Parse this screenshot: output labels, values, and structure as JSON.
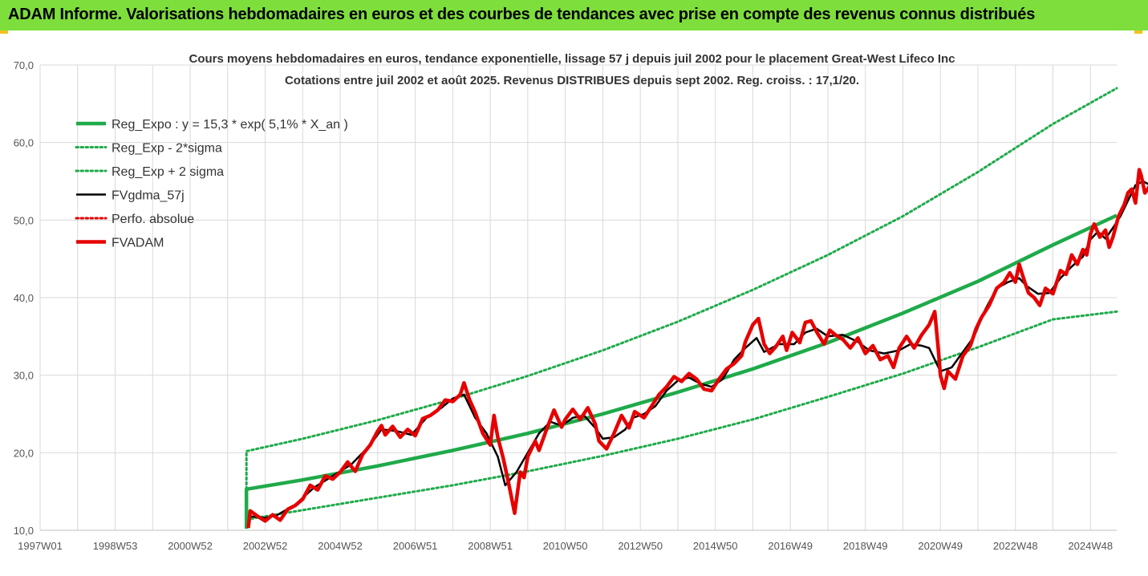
{
  "header": {
    "title": "ADAM Informe. Valorisations hebdomadaires en euros et des courbes de tendances avec prise en compte des revenus connus distribués"
  },
  "colors": {
    "header_bg": "#7dde3c",
    "trend": "#1faa4a",
    "black": "#000000",
    "red": "#e60000",
    "grid": "#d9d9d9"
  },
  "chart_data": {
    "type": "line",
    "title": "Cours moyens hebdomadaires en euros, tendance exponentielle, lissage 57 j depuis juil 2002 pour le placement Great-West Lifeco Inc",
    "subtitle": "Cotations entre juil 2002 et août 2025. Revenus DISTRIBUES depuis sept 2002. Reg. croiss. : 17,1/20.",
    "xlim": [
      1997.0,
      2025.7
    ],
    "ylim": [
      10,
      70
    ],
    "grid": "vertical and horizontal",
    "legend_position": "top-left",
    "y_ticks": [
      "10,0",
      "20,0",
      "30,0",
      "40,0",
      "50,0",
      "60,0",
      "70,0"
    ],
    "x_ticks": [
      {
        "label": "1997W01",
        "x": 1997.0
      },
      {
        "label": "1998W53",
        "x": 1999.0
      },
      {
        "label": "2000W52",
        "x": 2001.0
      },
      {
        "label": "2002W52",
        "x": 2003.0
      },
      {
        "label": "2004W52",
        "x": 2005.0
      },
      {
        "label": "2006W51",
        "x": 2007.0
      },
      {
        "label": "2008W51",
        "x": 2009.0
      },
      {
        "label": "2010W50",
        "x": 2011.0
      },
      {
        "label": "2012W50",
        "x": 2013.0
      },
      {
        "label": "2014W50",
        "x": 2015.0
      },
      {
        "label": "2016W49",
        "x": 2017.0
      },
      {
        "label": "2018W49",
        "x": 2019.0
      },
      {
        "label": "2020W49",
        "x": 2021.0
      },
      {
        "label": "2022W48",
        "x": 2023.0
      },
      {
        "label": "2024W48",
        "x": 2025.0
      }
    ],
    "series": [
      {
        "name": "Reg_Expo : y = 15,3 * exp( 5,1% *  X_an )",
        "style": "solid-thick",
        "color": "#1faa4a",
        "points": [
          [
            2002.5,
            10.2
          ],
          [
            2002.5,
            15.3
          ],
          [
            2004,
            16.5
          ],
          [
            2006,
            18.3
          ],
          [
            2008,
            20.3
          ],
          [
            2010,
            22.5
          ],
          [
            2012,
            25.0
          ],
          [
            2014,
            27.8
          ],
          [
            2016,
            30.8
          ],
          [
            2018,
            34.2
          ],
          [
            2020,
            38.0
          ],
          [
            2022,
            42.1
          ],
          [
            2024,
            46.8
          ],
          [
            2025.7,
            50.6
          ]
        ]
      },
      {
        "name": "Reg_Exp - 2*sigma",
        "style": "dotted",
        "color": "#1faa4a",
        "points": [
          [
            2002.5,
            11.4
          ],
          [
            2004,
            12.6
          ],
          [
            2006,
            14.2
          ],
          [
            2008,
            15.8
          ],
          [
            2010,
            17.6
          ],
          [
            2012,
            19.6
          ],
          [
            2014,
            21.8
          ],
          [
            2016,
            24.3
          ],
          [
            2018,
            27.2
          ],
          [
            2020,
            30.2
          ],
          [
            2022,
            33.6
          ],
          [
            2024,
            37.2
          ],
          [
            2025.7,
            38.2
          ]
        ]
      },
      {
        "name": "Reg_Exp + 2 sigma",
        "style": "dotted",
        "color": "#1faa4a",
        "points": [
          [
            2002.5,
            15.3
          ],
          [
            2002.5,
            20.2
          ],
          [
            2004,
            21.8
          ],
          [
            2006,
            24.2
          ],
          [
            2008,
            26.9
          ],
          [
            2010,
            29.9
          ],
          [
            2012,
            33.2
          ],
          [
            2014,
            36.9
          ],
          [
            2016,
            41.0
          ],
          [
            2018,
            45.5
          ],
          [
            2020,
            50.5
          ],
          [
            2022,
            56.2
          ],
          [
            2024,
            62.4
          ],
          [
            2025.7,
            67.0
          ]
        ]
      },
      {
        "name": "FVgdma_57j",
        "style": "solid",
        "color": "#000000",
        "points": [
          [
            2002.6,
            11.8
          ],
          [
            2003.0,
            11.6
          ],
          [
            2003.3,
            11.9
          ],
          [
            2003.8,
            13.3
          ],
          [
            2004.3,
            15.5
          ],
          [
            2004.8,
            17.0
          ],
          [
            2005.3,
            18.5
          ],
          [
            2005.8,
            21.0
          ],
          [
            2006.1,
            23.0
          ],
          [
            2006.5,
            22.8
          ],
          [
            2006.9,
            22.3
          ],
          [
            2007.3,
            24.5
          ],
          [
            2007.7,
            25.8
          ],
          [
            2008.0,
            27.0
          ],
          [
            2008.3,
            27.5
          ],
          [
            2008.6,
            24.5
          ],
          [
            2008.9,
            22.5
          ],
          [
            2009.2,
            19.5
          ],
          [
            2009.4,
            15.8
          ],
          [
            2009.7,
            17.5
          ],
          [
            2010.0,
            20.0
          ],
          [
            2010.3,
            22.5
          ],
          [
            2010.6,
            24.0
          ],
          [
            2010.9,
            23.5
          ],
          [
            2011.2,
            24.5
          ],
          [
            2011.5,
            24.8
          ],
          [
            2011.8,
            23.2
          ],
          [
            2012.0,
            21.8
          ],
          [
            2012.3,
            22.0
          ],
          [
            2012.6,
            23.0
          ],
          [
            2012.8,
            24.5
          ],
          [
            2013.1,
            25.0
          ],
          [
            2013.4,
            26.0
          ],
          [
            2013.7,
            28.0
          ],
          [
            2014.0,
            29.3
          ],
          [
            2014.3,
            29.7
          ],
          [
            2014.6,
            28.9
          ],
          [
            2014.9,
            28.5
          ],
          [
            2015.2,
            29.5
          ],
          [
            2015.5,
            32.0
          ],
          [
            2015.8,
            33.5
          ],
          [
            2016.1,
            34.8
          ],
          [
            2016.3,
            33.0
          ],
          [
            2016.5,
            33.5
          ],
          [
            2016.7,
            34.0
          ],
          [
            2016.9,
            34.0
          ],
          [
            2017.1,
            34.0
          ],
          [
            2017.4,
            35.5
          ],
          [
            2017.7,
            36.0
          ],
          [
            2018.0,
            35.0
          ],
          [
            2018.4,
            35.2
          ],
          [
            2018.8,
            34.3
          ],
          [
            2019.1,
            33.2
          ],
          [
            2019.5,
            32.8
          ],
          [
            2019.9,
            33.2
          ],
          [
            2020.2,
            34.0
          ],
          [
            2020.5,
            33.8
          ],
          [
            2020.7,
            33.5
          ],
          [
            2021.0,
            30.5
          ],
          [
            2021.3,
            31.0
          ],
          [
            2021.6,
            33.0
          ],
          [
            2021.9,
            35.0
          ],
          [
            2022.2,
            38.5
          ],
          [
            2022.5,
            41.2
          ],
          [
            2022.8,
            42.0
          ],
          [
            2023.1,
            42.5
          ],
          [
            2023.3,
            41.5
          ],
          [
            2023.6,
            40.5
          ],
          [
            2023.9,
            40.6
          ],
          [
            2024.2,
            42.5
          ],
          [
            2024.5,
            44.0
          ],
          [
            2024.8,
            45.3
          ],
          [
            2025.0,
            47.5
          ],
          [
            2025.2,
            48.5
          ],
          [
            2025.4,
            47.6
          ],
          [
            2025.6,
            49.0
          ],
          [
            2025.8,
            50.5
          ],
          [
            2026.0,
            52.5
          ],
          [
            2026.2,
            54.5
          ],
          [
            2026.4,
            55.0
          ],
          [
            2026.6,
            54.5
          ],
          [
            2026.8,
            54.3
          ]
        ]
      },
      {
        "name": "Perfo. absolue",
        "style": "dotted",
        "color": "#e60000",
        "points": []
      },
      {
        "name": "FVADAM",
        "style": "solid-thick",
        "color": "#e60000",
        "points": [
          [
            2002.55,
            10.3
          ],
          [
            2002.6,
            12.5
          ],
          [
            2002.8,
            11.8
          ],
          [
            2003.0,
            11.2
          ],
          [
            2003.2,
            12.0
          ],
          [
            2003.4,
            11.3
          ],
          [
            2003.6,
            12.7
          ],
          [
            2003.8,
            13.2
          ],
          [
            2004.0,
            14.0
          ],
          [
            2004.2,
            15.8
          ],
          [
            2004.4,
            15.2
          ],
          [
            2004.6,
            17.0
          ],
          [
            2004.8,
            16.6
          ],
          [
            2005.0,
            17.5
          ],
          [
            2005.2,
            18.8
          ],
          [
            2005.4,
            17.6
          ],
          [
            2005.6,
            19.8
          ],
          [
            2005.8,
            21.0
          ],
          [
            2006.0,
            22.8
          ],
          [
            2006.1,
            23.5
          ],
          [
            2006.2,
            22.3
          ],
          [
            2006.4,
            23.4
          ],
          [
            2006.6,
            22.0
          ],
          [
            2006.8,
            23.0
          ],
          [
            2007.0,
            22.2
          ],
          [
            2007.2,
            24.4
          ],
          [
            2007.4,
            24.8
          ],
          [
            2007.6,
            25.5
          ],
          [
            2007.8,
            26.8
          ],
          [
            2008.0,
            26.6
          ],
          [
            2008.2,
            27.5
          ],
          [
            2008.3,
            29.0
          ],
          [
            2008.45,
            26.8
          ],
          [
            2008.6,
            25.2
          ],
          [
            2008.8,
            22.5
          ],
          [
            2009.0,
            21.0
          ],
          [
            2009.1,
            24.8
          ],
          [
            2009.2,
            22.0
          ],
          [
            2009.35,
            19.2
          ],
          [
            2009.5,
            15.8
          ],
          [
            2009.65,
            12.2
          ],
          [
            2009.8,
            17.5
          ],
          [
            2009.9,
            16.8
          ],
          [
            2010.0,
            19.5
          ],
          [
            2010.2,
            21.5
          ],
          [
            2010.3,
            20.3
          ],
          [
            2010.5,
            23.0
          ],
          [
            2010.7,
            25.5
          ],
          [
            2010.9,
            23.3
          ],
          [
            2011.0,
            24.3
          ],
          [
            2011.2,
            25.6
          ],
          [
            2011.4,
            24.3
          ],
          [
            2011.6,
            25.8
          ],
          [
            2011.8,
            23.7
          ],
          [
            2011.9,
            21.5
          ],
          [
            2012.1,
            20.5
          ],
          [
            2012.3,
            22.5
          ],
          [
            2012.5,
            24.8
          ],
          [
            2012.7,
            23.2
          ],
          [
            2012.85,
            25.3
          ],
          [
            2013.1,
            24.5
          ],
          [
            2013.3,
            26.0
          ],
          [
            2013.5,
            27.5
          ],
          [
            2013.7,
            28.5
          ],
          [
            2013.9,
            29.8
          ],
          [
            2014.1,
            29.2
          ],
          [
            2014.3,
            30.2
          ],
          [
            2014.5,
            29.5
          ],
          [
            2014.7,
            28.2
          ],
          [
            2014.9,
            28.0
          ],
          [
            2015.1,
            29.5
          ],
          [
            2015.3,
            30.8
          ],
          [
            2015.5,
            31.5
          ],
          [
            2015.7,
            32.5
          ],
          [
            2015.8,
            34.3
          ],
          [
            2016.0,
            36.5
          ],
          [
            2016.15,
            37.3
          ],
          [
            2016.3,
            34.0
          ],
          [
            2016.45,
            32.8
          ],
          [
            2016.6,
            33.6
          ],
          [
            2016.8,
            35.0
          ],
          [
            2016.9,
            33.2
          ],
          [
            2017.05,
            35.5
          ],
          [
            2017.25,
            34.2
          ],
          [
            2017.4,
            36.8
          ],
          [
            2017.55,
            37.0
          ],
          [
            2017.7,
            35.6
          ],
          [
            2017.9,
            34.0
          ],
          [
            2018.05,
            35.8
          ],
          [
            2018.2,
            35.2
          ],
          [
            2018.4,
            34.6
          ],
          [
            2018.6,
            33.5
          ],
          [
            2018.8,
            34.8
          ],
          [
            2019.0,
            32.8
          ],
          [
            2019.2,
            33.8
          ],
          [
            2019.4,
            32.0
          ],
          [
            2019.6,
            32.5
          ],
          [
            2019.75,
            31.0
          ],
          [
            2019.9,
            33.5
          ],
          [
            2020.1,
            35.0
          ],
          [
            2020.3,
            33.5
          ],
          [
            2020.5,
            35.2
          ],
          [
            2020.7,
            36.5
          ],
          [
            2020.85,
            38.2
          ],
          [
            2020.95,
            33.0
          ],
          [
            2021.0,
            30.0
          ],
          [
            2021.1,
            28.3
          ],
          [
            2021.2,
            30.5
          ],
          [
            2021.4,
            29.5
          ],
          [
            2021.6,
            32.5
          ],
          [
            2021.8,
            33.8
          ],
          [
            2021.95,
            36.0
          ],
          [
            2022.1,
            37.5
          ],
          [
            2022.3,
            39.0
          ],
          [
            2022.5,
            41.2
          ],
          [
            2022.7,
            42.0
          ],
          [
            2022.85,
            43.2
          ],
          [
            2023.0,
            42.0
          ],
          [
            2023.1,
            44.3
          ],
          [
            2023.25,
            42.0
          ],
          [
            2023.35,
            40.6
          ],
          [
            2023.5,
            40.0
          ],
          [
            2023.65,
            39.0
          ],
          [
            2023.8,
            41.2
          ],
          [
            2024.0,
            40.5
          ],
          [
            2024.2,
            43.5
          ],
          [
            2024.35,
            43.0
          ],
          [
            2024.5,
            45.5
          ],
          [
            2024.65,
            44.3
          ],
          [
            2024.8,
            46.2
          ],
          [
            2024.9,
            45.5
          ],
          [
            2025.0,
            48.2
          ],
          [
            2025.1,
            49.5
          ],
          [
            2025.25,
            47.8
          ],
          [
            2025.4,
            48.7
          ],
          [
            2025.5,
            46.5
          ],
          [
            2025.6,
            47.8
          ],
          [
            2025.75,
            50.5
          ],
          [
            2025.9,
            52.0
          ],
          [
            2026.0,
            53.5
          ],
          [
            2026.1,
            54.0
          ],
          [
            2026.2,
            52.2
          ],
          [
            2026.3,
            56.5
          ],
          [
            2026.35,
            55.8
          ],
          [
            2026.45,
            53.5
          ],
          [
            2026.6,
            54.5
          ],
          [
            2026.75,
            53.5
          ],
          [
            2026.85,
            55.0
          ]
        ]
      }
    ]
  }
}
